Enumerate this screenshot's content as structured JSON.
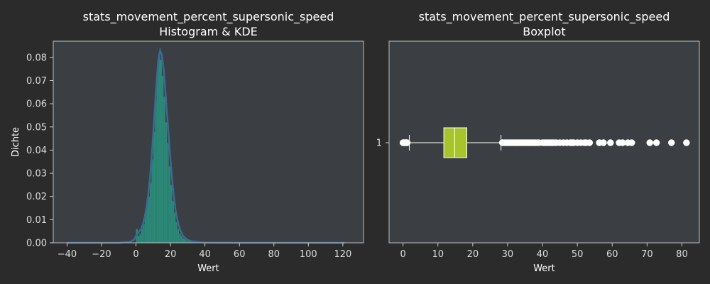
{
  "colors": {
    "figure_bg": "#2b2b2b",
    "axes_bg": "#3b3f43",
    "hist_fill": "#2a8c7a",
    "kde_line": "#3a6a94",
    "box_fill": "#a8c42c",
    "flier": "#ffffff"
  },
  "chart_data": [
    {
      "type": "bar",
      "subtype": "histogram-with-kde",
      "title_line1": "stats_movement_percent_supersonic_speed",
      "title_line2": "Histogram & KDE",
      "xlabel": "Wert",
      "ylabel": "Dichte",
      "xlim": [
        -48,
        132
      ],
      "ylim": [
        0,
        0.087
      ],
      "xticks": [
        -40,
        -20,
        0,
        20,
        40,
        60,
        80,
        100,
        120
      ],
      "xtick_labels": [
        "−40",
        "−20",
        "0",
        "20",
        "40",
        "60",
        "80",
        "100",
        "120"
      ],
      "yticks": [
        0.0,
        0.01,
        0.02,
        0.03,
        0.04,
        0.05,
        0.06,
        0.07,
        0.08
      ],
      "ytick_labels": [
        "0.00",
        "0.01",
        "0.02",
        "0.03",
        "0.04",
        "0.05",
        "0.06",
        "0.07",
        "0.08"
      ],
      "grid": false,
      "hist_bins": [
        {
          "x0": 0,
          "x1": 1,
          "density": 0.006
        },
        {
          "x0": 1,
          "x1": 2,
          "density": 0.003
        },
        {
          "x0": 2,
          "x1": 3,
          "density": 0.004
        },
        {
          "x0": 3,
          "x1": 4,
          "density": 0.006
        },
        {
          "x0": 4,
          "x1": 5,
          "density": 0.008
        },
        {
          "x0": 5,
          "x1": 6,
          "density": 0.012
        },
        {
          "x0": 6,
          "x1": 7,
          "density": 0.018
        },
        {
          "x0": 7,
          "x1": 8,
          "density": 0.02
        },
        {
          "x0": 8,
          "x1": 9,
          "density": 0.026
        },
        {
          "x0": 9,
          "x1": 10,
          "density": 0.036
        },
        {
          "x0": 10,
          "x1": 11,
          "density": 0.048
        },
        {
          "x0": 11,
          "x1": 12,
          "density": 0.062
        },
        {
          "x0": 12,
          "x1": 13,
          "density": 0.074
        },
        {
          "x0": 13,
          "x1": 14,
          "density": 0.082
        },
        {
          "x0": 14,
          "x1": 15,
          "density": 0.079
        },
        {
          "x0": 15,
          "x1": 16,
          "density": 0.072
        },
        {
          "x0": 16,
          "x1": 17,
          "density": 0.063
        },
        {
          "x0": 17,
          "x1": 18,
          "density": 0.052
        },
        {
          "x0": 18,
          "x1": 19,
          "density": 0.043
        },
        {
          "x0": 19,
          "x1": 20,
          "density": 0.033
        },
        {
          "x0": 20,
          "x1": 21,
          "density": 0.025
        },
        {
          "x0": 21,
          "x1": 22,
          "density": 0.018
        },
        {
          "x0": 22,
          "x1": 23,
          "density": 0.013
        },
        {
          "x0": 23,
          "x1": 24,
          "density": 0.009
        },
        {
          "x0": 24,
          "x1": 25,
          "density": 0.006
        },
        {
          "x0": 25,
          "x1": 26,
          "density": 0.004
        },
        {
          "x0": 26,
          "x1": 27,
          "density": 0.003
        },
        {
          "x0": 27,
          "x1": 28,
          "density": 0.002
        },
        {
          "x0": 28,
          "x1": 29,
          "density": 0.0015
        },
        {
          "x0": 29,
          "x1": 30,
          "density": 0.001
        },
        {
          "x0": 30,
          "x1": 32,
          "density": 0.0007
        },
        {
          "x0": 32,
          "x1": 35,
          "density": 0.0004
        },
        {
          "x0": 35,
          "x1": 40,
          "density": 0.0002
        }
      ],
      "kde": {
        "x": [
          -40,
          -10,
          -3,
          -1,
          0,
          1,
          2,
          3,
          4,
          5,
          6,
          7,
          8,
          9,
          10,
          11,
          12,
          13,
          14,
          15,
          16,
          17,
          18,
          19,
          20,
          21,
          22,
          23,
          24,
          25,
          26,
          27,
          28,
          30,
          33,
          36,
          40,
          50,
          70,
          100,
          121
        ],
        "y": [
          0,
          0,
          0.0005,
          0.0015,
          0.003,
          0.004,
          0.005,
          0.006,
          0.008,
          0.011,
          0.015,
          0.02,
          0.027,
          0.036,
          0.047,
          0.059,
          0.07,
          0.079,
          0.083,
          0.081,
          0.075,
          0.066,
          0.056,
          0.046,
          0.036,
          0.027,
          0.02,
          0.014,
          0.01,
          0.007,
          0.005,
          0.0035,
          0.0025,
          0.0012,
          0.0006,
          0.0003,
          0.0001,
          3e-05,
          0,
          0,
          0
        ]
      }
    },
    {
      "type": "boxplot",
      "title_line1": "stats_movement_percent_supersonic_speed",
      "title_line2": "Boxplot",
      "xlabel": "Wert",
      "ylabel": "",
      "xlim": [
        -4,
        85
      ],
      "xticks": [
        0,
        10,
        20,
        30,
        40,
        50,
        60,
        70,
        80
      ],
      "xtick_labels": [
        "0",
        "10",
        "20",
        "30",
        "40",
        "50",
        "60",
        "70",
        "80"
      ],
      "ytick_labels": [
        "1"
      ],
      "grid": false,
      "box": {
        "whisker_low": 1.8,
        "q1": 11.7,
        "median": 14.8,
        "q3": 18.3,
        "whisker_high": 28.1
      },
      "fliers": [
        0,
        0.2,
        0.4,
        0.6,
        0.8,
        1.0,
        1.2,
        28.5,
        29,
        29.5,
        30,
        30.5,
        31,
        31.5,
        32,
        32.5,
        33,
        33.5,
        34,
        34.5,
        35,
        35.5,
        36,
        36.5,
        37,
        37.5,
        38,
        38.5,
        39,
        40,
        40.5,
        41,
        41.5,
        42,
        42.5,
        43,
        43.5,
        44,
        45,
        46,
        47,
        48,
        48.3,
        48.6,
        49,
        50,
        51,
        52,
        52.5,
        53.5,
        56.3,
        57.5,
        59.5,
        62,
        63,
        64.5,
        65.6,
        70.8,
        72.7,
        77,
        81.3
      ]
    }
  ]
}
